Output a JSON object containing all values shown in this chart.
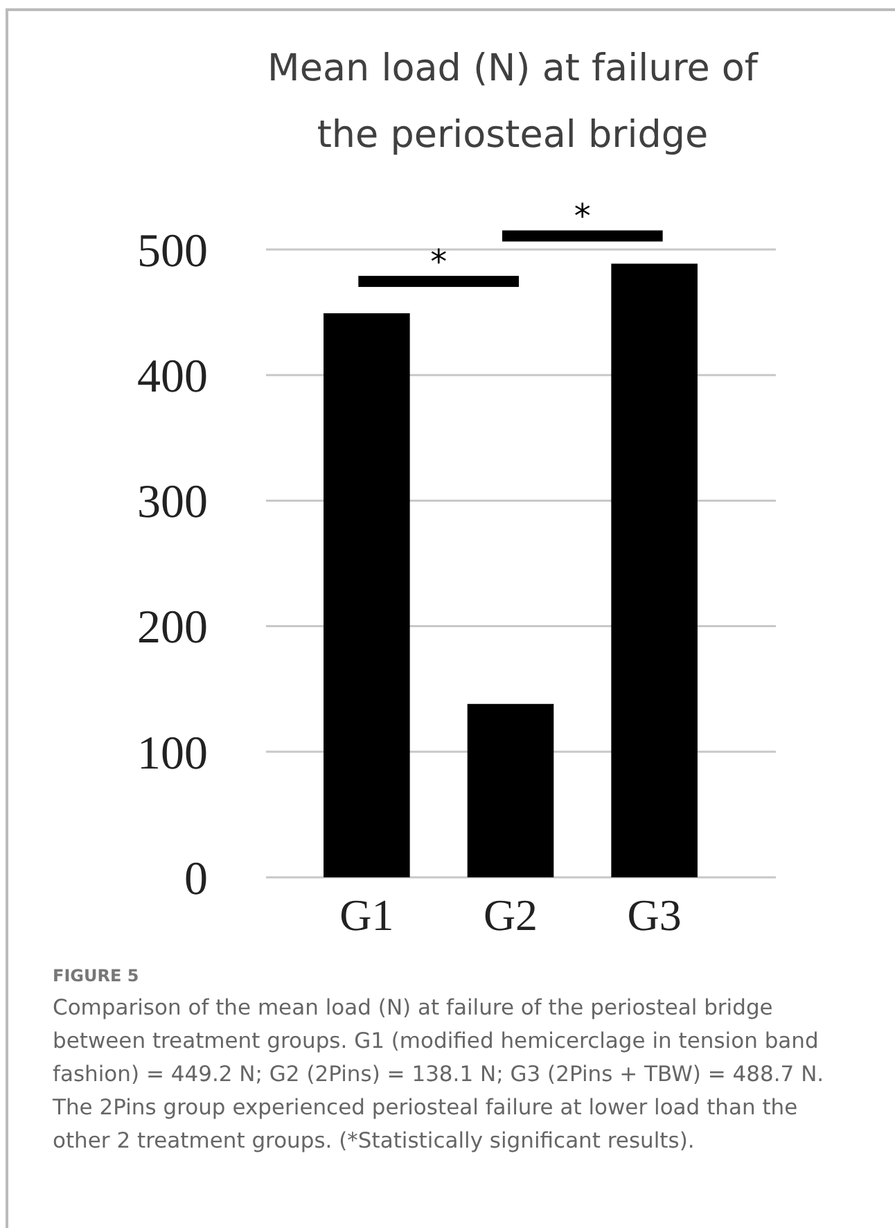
{
  "chart_data": {
    "type": "bar",
    "title": "Mean load (N) at failure of the periosteal bridge",
    "categories": [
      "G1",
      "G2",
      "G3"
    ],
    "values": [
      449.2,
      138.1,
      488.7
    ],
    "color": "#000000",
    "ylim": [
      0,
      500
    ],
    "yticks": [
      0,
      100,
      200,
      300,
      400,
      500
    ],
    "grid": "y",
    "annotations": [
      "*",
      "*",
      "FIGURE 5",
      "Comparison of the mean load (N) at failure of the periosteal bridge between treatment groups. G1 (modified hemicerclage in tension band fashion) = 449.2 N; G2 (2Pins) = 138.1 N; G3 (2Pins + TBW) = 488.7 N. The 2Pins group experienced periosteal failure at lower load than the other 2 treatment groups. (*Statistically significant results)."
    ]
  }
}
